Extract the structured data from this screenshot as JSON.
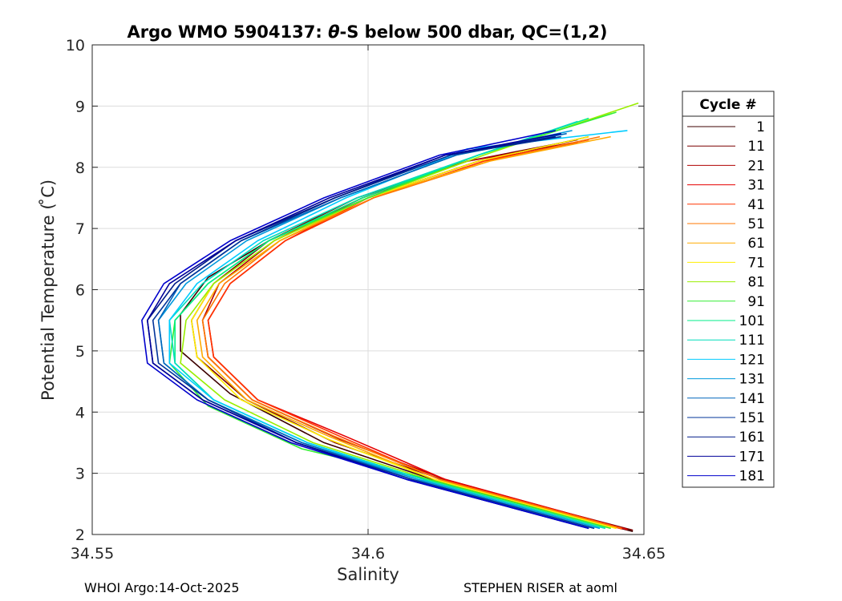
{
  "chart_data": {
    "type": "line",
    "title_prefix": "Argo WMO 5904137: ",
    "title_theta": "θ",
    "title_suffix": "-S below 500 dbar,  QC=(1,2)",
    "xlabel": "Salinity",
    "ylabel": "Potential Temperature ( ̊C)",
    "xlim": [
      34.55,
      34.65
    ],
    "ylim": [
      2,
      10
    ],
    "xticks": [
      34.55,
      34.6,
      34.65
    ],
    "xtick_labels": [
      "34.55",
      "34.6",
      "34.65"
    ],
    "yticks": [
      2,
      3,
      4,
      5,
      6,
      7,
      8,
      9,
      10
    ],
    "ytick_labels": [
      "2",
      "3",
      "4",
      "5",
      "6",
      "7",
      "8",
      "9",
      "10"
    ],
    "grid": true,
    "legend_position": "right",
    "legend_title": "Cycle #",
    "series": [
      {
        "name": "1",
        "color": "#3c0000",
        "points": [
          [
            34.648,
            2.05
          ],
          [
            34.615,
            2.8
          ],
          [
            34.592,
            3.5
          ],
          [
            34.575,
            4.3
          ],
          [
            34.566,
            5.0
          ],
          [
            34.566,
            5.6
          ],
          [
            34.571,
            6.2
          ],
          [
            34.582,
            6.8
          ],
          [
            34.6,
            7.5
          ],
          [
            34.62,
            8.1
          ],
          [
            34.64,
            8.5
          ]
        ]
      },
      {
        "name": "11",
        "color": "#7a0000",
        "points": [
          [
            34.648,
            2.07
          ],
          [
            34.615,
            2.85
          ],
          [
            34.594,
            3.5
          ],
          [
            34.578,
            4.2
          ],
          [
            34.569,
            4.9
          ],
          [
            34.568,
            5.5
          ],
          [
            34.572,
            6.1
          ],
          [
            34.582,
            6.8
          ],
          [
            34.598,
            7.5
          ],
          [
            34.618,
            8.1
          ],
          [
            34.638,
            8.45
          ]
        ]
      },
      {
        "name": "21",
        "color": "#b00000",
        "points": [
          [
            34.647,
            2.08
          ],
          [
            34.614,
            2.9
          ],
          [
            34.595,
            3.55
          ],
          [
            34.579,
            4.2
          ],
          [
            34.571,
            4.9
          ],
          [
            34.57,
            5.5
          ],
          [
            34.573,
            6.1
          ],
          [
            34.583,
            6.8
          ],
          [
            34.599,
            7.5
          ],
          [
            34.618,
            8.1
          ],
          [
            34.637,
            8.4
          ]
        ]
      },
      {
        "name": "31",
        "color": "#e60000",
        "points": [
          [
            34.647,
            2.08
          ],
          [
            34.614,
            2.9
          ],
          [
            34.596,
            3.6
          ],
          [
            34.58,
            4.2
          ],
          [
            34.572,
            4.9
          ],
          [
            34.571,
            5.5
          ],
          [
            34.575,
            6.1
          ],
          [
            34.585,
            6.8
          ],
          [
            34.6,
            7.5
          ],
          [
            34.62,
            8.1
          ],
          [
            34.638,
            8.4
          ]
        ]
      },
      {
        "name": "41",
        "color": "#ff3300",
        "points": [
          [
            34.646,
            2.09
          ],
          [
            34.613,
            2.9
          ],
          [
            34.595,
            3.6
          ],
          [
            34.58,
            4.2
          ],
          [
            34.572,
            4.9
          ],
          [
            34.571,
            5.5
          ],
          [
            34.575,
            6.1
          ],
          [
            34.585,
            6.8
          ],
          [
            34.601,
            7.5
          ],
          [
            34.621,
            8.1
          ],
          [
            34.64,
            8.45
          ]
        ]
      },
      {
        "name": "51",
        "color": "#ff7700",
        "points": [
          [
            34.646,
            2.1
          ],
          [
            34.613,
            2.9
          ],
          [
            34.594,
            3.6
          ],
          [
            34.579,
            4.2
          ],
          [
            34.571,
            4.9
          ],
          [
            34.57,
            5.5
          ],
          [
            34.574,
            6.1
          ],
          [
            34.584,
            6.8
          ],
          [
            34.601,
            7.5
          ],
          [
            34.622,
            8.1
          ],
          [
            34.642,
            8.5
          ]
        ]
      },
      {
        "name": "61",
        "color": "#ffaa00",
        "points": [
          [
            34.645,
            2.1
          ],
          [
            34.612,
            2.9
          ],
          [
            34.593,
            3.6
          ],
          [
            34.578,
            4.2
          ],
          [
            34.57,
            4.9
          ],
          [
            34.569,
            5.5
          ],
          [
            34.573,
            6.1
          ],
          [
            34.584,
            6.8
          ],
          [
            34.6,
            7.5
          ],
          [
            34.622,
            8.1
          ],
          [
            34.644,
            8.5
          ]
        ]
      },
      {
        "name": "71",
        "color": "#ffee00",
        "points": [
          [
            34.645,
            2.1
          ],
          [
            34.612,
            2.9
          ],
          [
            34.593,
            3.55
          ],
          [
            34.577,
            4.2
          ],
          [
            34.569,
            4.9
          ],
          [
            34.568,
            5.5
          ],
          [
            34.572,
            6.1
          ],
          [
            34.583,
            6.8
          ],
          [
            34.6,
            7.5
          ],
          [
            34.62,
            8.1
          ],
          [
            34.64,
            8.5
          ]
        ]
      },
      {
        "name": "81",
        "color": "#99ee00",
        "points": [
          [
            34.644,
            2.1
          ],
          [
            34.611,
            2.9
          ],
          [
            34.59,
            3.5
          ],
          [
            34.574,
            4.2
          ],
          [
            34.566,
            4.8
          ],
          [
            34.567,
            5.5
          ],
          [
            34.572,
            6.1
          ],
          [
            34.583,
            6.8
          ],
          [
            34.6,
            7.5
          ],
          [
            34.621,
            8.2
          ],
          [
            34.649,
            9.05
          ]
        ]
      },
      {
        "name": "91",
        "color": "#33ee33",
        "points": [
          [
            34.644,
            2.1
          ],
          [
            34.611,
            2.9
          ],
          [
            34.588,
            3.4
          ],
          [
            34.571,
            4.1
          ],
          [
            34.564,
            4.8
          ],
          [
            34.565,
            5.5
          ],
          [
            34.571,
            6.1
          ],
          [
            34.582,
            6.8
          ],
          [
            34.6,
            7.5
          ],
          [
            34.62,
            8.2
          ],
          [
            34.645,
            8.9
          ]
        ]
      },
      {
        "name": "101",
        "color": "#00ee88",
        "points": [
          [
            34.643,
            2.1
          ],
          [
            34.61,
            2.9
          ],
          [
            34.589,
            3.5
          ],
          [
            34.572,
            4.2
          ],
          [
            34.565,
            4.8
          ],
          [
            34.565,
            5.5
          ],
          [
            34.571,
            6.1
          ],
          [
            34.582,
            6.8
          ],
          [
            34.599,
            7.5
          ],
          [
            34.62,
            8.2
          ],
          [
            34.64,
            8.8
          ]
        ]
      },
      {
        "name": "111",
        "color": "#00ddbb",
        "points": [
          [
            34.643,
            2.1
          ],
          [
            34.61,
            2.9
          ],
          [
            34.589,
            3.5
          ],
          [
            34.572,
            4.2
          ],
          [
            34.565,
            4.8
          ],
          [
            34.564,
            5.5
          ],
          [
            34.57,
            6.1
          ],
          [
            34.581,
            6.8
          ],
          [
            34.598,
            7.5
          ],
          [
            34.62,
            8.2
          ],
          [
            34.638,
            8.75
          ]
        ]
      },
      {
        "name": "121",
        "color": "#00ccff",
        "points": [
          [
            34.642,
            2.1
          ],
          [
            34.609,
            2.9
          ],
          [
            34.589,
            3.5
          ],
          [
            34.572,
            4.2
          ],
          [
            34.564,
            4.8
          ],
          [
            34.564,
            5.5
          ],
          [
            34.569,
            6.1
          ],
          [
            34.58,
            6.8
          ],
          [
            34.596,
            7.5
          ],
          [
            34.618,
            8.3
          ],
          [
            34.647,
            8.6
          ]
        ]
      },
      {
        "name": "131",
        "color": "#0099dd",
        "points": [
          [
            34.642,
            2.1
          ],
          [
            34.609,
            2.9
          ],
          [
            34.588,
            3.5
          ],
          [
            34.571,
            4.2
          ],
          [
            34.563,
            4.8
          ],
          [
            34.562,
            5.5
          ],
          [
            34.567,
            6.1
          ],
          [
            34.578,
            6.8
          ],
          [
            34.595,
            7.5
          ],
          [
            34.616,
            8.2
          ],
          [
            34.637,
            8.6
          ]
        ]
      },
      {
        "name": "141",
        "color": "#0066bb",
        "points": [
          [
            34.641,
            2.1
          ],
          [
            34.608,
            2.9
          ],
          [
            34.588,
            3.5
          ],
          [
            34.571,
            4.2
          ],
          [
            34.563,
            4.8
          ],
          [
            34.562,
            5.5
          ],
          [
            34.566,
            6.1
          ],
          [
            34.577,
            6.8
          ],
          [
            34.595,
            7.5
          ],
          [
            34.616,
            8.2
          ],
          [
            34.636,
            8.55
          ]
        ]
      },
      {
        "name": "151",
        "color": "#003399",
        "points": [
          [
            34.641,
            2.1
          ],
          [
            34.608,
            2.9
          ],
          [
            34.587,
            3.5
          ],
          [
            34.571,
            4.2
          ],
          [
            34.562,
            4.8
          ],
          [
            34.561,
            5.5
          ],
          [
            34.566,
            6.1
          ],
          [
            34.577,
            6.8
          ],
          [
            34.594,
            7.5
          ],
          [
            34.615,
            8.2
          ],
          [
            34.635,
            8.5
          ]
        ]
      },
      {
        "name": "161",
        "color": "#001a88",
        "points": [
          [
            34.64,
            2.1
          ],
          [
            34.607,
            2.9
          ],
          [
            34.587,
            3.5
          ],
          [
            34.57,
            4.2
          ],
          [
            34.561,
            4.8
          ],
          [
            34.56,
            5.5
          ],
          [
            34.565,
            6.1
          ],
          [
            34.576,
            6.8
          ],
          [
            34.594,
            7.5
          ],
          [
            34.614,
            8.2
          ],
          [
            34.634,
            8.5
          ]
        ]
      },
      {
        "name": "171",
        "color": "#000099",
        "points": [
          [
            34.64,
            2.1
          ],
          [
            34.607,
            2.9
          ],
          [
            34.587,
            3.5
          ],
          [
            34.57,
            4.2
          ],
          [
            34.561,
            4.8
          ],
          [
            34.56,
            5.5
          ],
          [
            34.564,
            6.1
          ],
          [
            34.576,
            6.8
          ],
          [
            34.593,
            7.5
          ],
          [
            34.614,
            8.2
          ],
          [
            34.635,
            8.55
          ]
        ]
      },
      {
        "name": "181",
        "color": "#0000cc",
        "points": [
          [
            34.64,
            2.1
          ],
          [
            34.607,
            2.9
          ],
          [
            34.586,
            3.5
          ],
          [
            34.569,
            4.2
          ],
          [
            34.56,
            4.8
          ],
          [
            34.559,
            5.5
          ],
          [
            34.563,
            6.1
          ],
          [
            34.575,
            6.8
          ],
          [
            34.592,
            7.5
          ],
          [
            34.613,
            8.2
          ],
          [
            34.634,
            8.6
          ]
        ]
      }
    ]
  },
  "footer": {
    "left": "WHOI Argo:14-Oct-2025",
    "right": "STEPHEN RISER at aoml"
  }
}
